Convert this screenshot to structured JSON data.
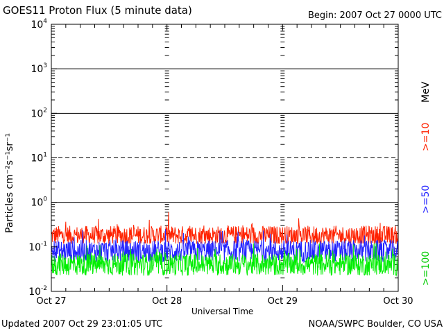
{
  "title": "GOES11 Proton Flux (5 minute data)",
  "begin_label": "Begin: 2007 Oct 27 0000 UTC",
  "updated_label": "Updated 2007 Oct 29 23:01:05 UTC",
  "credit_label": "NOAA/SWPC Boulder, CO USA",
  "y_axis_label": "Particles cm⁻²s⁻¹sr⁻¹",
  "legend": {
    "unit": "MeV",
    "entries": [
      {
        "label": ">=10",
        "color": "#ff2200"
      },
      {
        "label": ">=50",
        "color": "#2222ff"
      },
      {
        "label": ">=100",
        "color": "#00ee00"
      }
    ]
  },
  "chart_data": {
    "type": "line",
    "title": "GOES11 Proton Flux (5 minute data)",
    "xlabel": "Universal Time",
    "ylabel": "Particles cm-2s-1sr-1",
    "yscale": "log",
    "ylim": [
      0.01,
      10000
    ],
    "y_ticks": [
      {
        "value": 0.01,
        "base": "10",
        "exp": "-2"
      },
      {
        "value": 0.1,
        "base": "10",
        "exp": "-1"
      },
      {
        "value": 1,
        "base": "10",
        "exp": "0"
      },
      {
        "value": 10,
        "base": "10",
        "exp": "1"
      },
      {
        "value": 100,
        "base": "10",
        "exp": "2"
      },
      {
        "value": 1000,
        "base": "10",
        "exp": "3"
      },
      {
        "value": 10000,
        "base": "10",
        "exp": "4"
      }
    ],
    "x_ticks": [
      "Oct 27",
      "Oct 28",
      "Oct 29",
      "Oct 30"
    ],
    "x_range_days": [
      0,
      3
    ],
    "grid": true,
    "reference_lines": [
      {
        "y": 10,
        "style": "dashed"
      },
      {
        "y": 1,
        "style": "solid"
      },
      {
        "y": 100,
        "style": "solid"
      },
      {
        "y": 1000,
        "style": "solid"
      }
    ],
    "series": [
      {
        "name": ">=10 MeV",
        "color": "#ff2200",
        "typical": 0.18,
        "spread_decades": 0.22,
        "min": 0.12,
        "max": 0.6
      },
      {
        "name": ">=50 MeV",
        "color": "#2222ff",
        "typical": 0.08,
        "spread_decades": 0.25,
        "min": 0.04,
        "max": 0.25
      },
      {
        "name": ">=100 MeV",
        "color": "#00ee00",
        "typical": 0.04,
        "spread_decades": 0.25,
        "min": 0.022,
        "max": 0.12
      }
    ]
  }
}
